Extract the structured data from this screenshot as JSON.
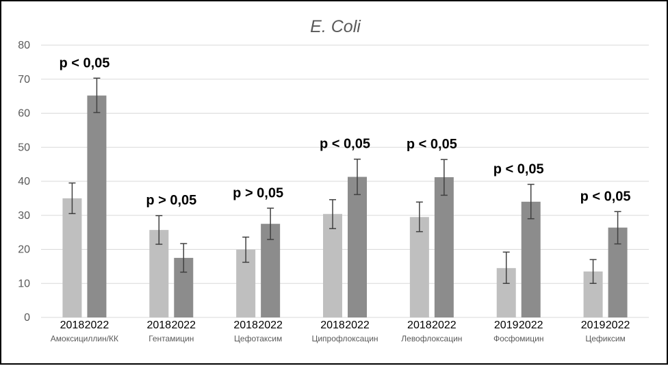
{
  "chart_data": {
    "type": "bar",
    "title": "E. Coli",
    "ylim": [
      0,
      80
    ],
    "yticks": [
      "0",
      "10",
      "20",
      "30",
      "40",
      "50",
      "60",
      "70",
      "80"
    ],
    "grid": true,
    "colors": {
      "first": "#bfbfbf",
      "second": "#8c8c8c",
      "error": "#404040",
      "grid": "#d9d9d9"
    },
    "groups": [
      {
        "label": "Амоксициллин/КК",
        "years": [
          "2018",
          "2022"
        ],
        "values": [
          35,
          65.2
        ],
        "errors": [
          [
            30.5,
            39.5
          ],
          [
            60.2,
            70.3
          ]
        ],
        "pvalue": "p < 0,05"
      },
      {
        "label": "Гентамицин",
        "years": [
          "2018",
          "2022"
        ],
        "values": [
          25.7,
          17.5
        ],
        "errors": [
          [
            21.5,
            29.9
          ],
          [
            13.3,
            21.7
          ]
        ],
        "pvalue": "p > 0,05"
      },
      {
        "label": "Цефотаксим",
        "years": [
          "2018",
          "2022"
        ],
        "values": [
          19.9,
          27.5
        ],
        "errors": [
          [
            16.2,
            23.6
          ],
          [
            22.9,
            32.1
          ]
        ],
        "pvalue": "p > 0,05"
      },
      {
        "label": "Ципрофлоксацин",
        "years": [
          "2018",
          "2022"
        ],
        "values": [
          30.4,
          41.3
        ],
        "errors": [
          [
            26.1,
            34.6
          ],
          [
            36.1,
            46.5
          ]
        ],
        "pvalue": "p < 0,05"
      },
      {
        "label": "Левофлоксацин",
        "years": [
          "2018",
          "2022"
        ],
        "values": [
          29.5,
          41.2
        ],
        "errors": [
          [
            25.2,
            33.9
          ],
          [
            35.9,
            46.4
          ]
        ],
        "pvalue": "p < 0,05"
      },
      {
        "label": "Фосфомицин",
        "years": [
          "2019",
          "2022"
        ],
        "values": [
          14.5,
          34
        ],
        "errors": [
          [
            10,
            19.2
          ],
          [
            29,
            39.1
          ]
        ],
        "pvalue": "p < 0,05"
      },
      {
        "label": "Цефиксим",
        "years": [
          "2019",
          "2022"
        ],
        "values": [
          13.5,
          26.4
        ],
        "errors": [
          [
            10,
            17
          ],
          [
            21.6,
            31.1
          ]
        ],
        "pvalue": "p < 0,05"
      }
    ]
  }
}
